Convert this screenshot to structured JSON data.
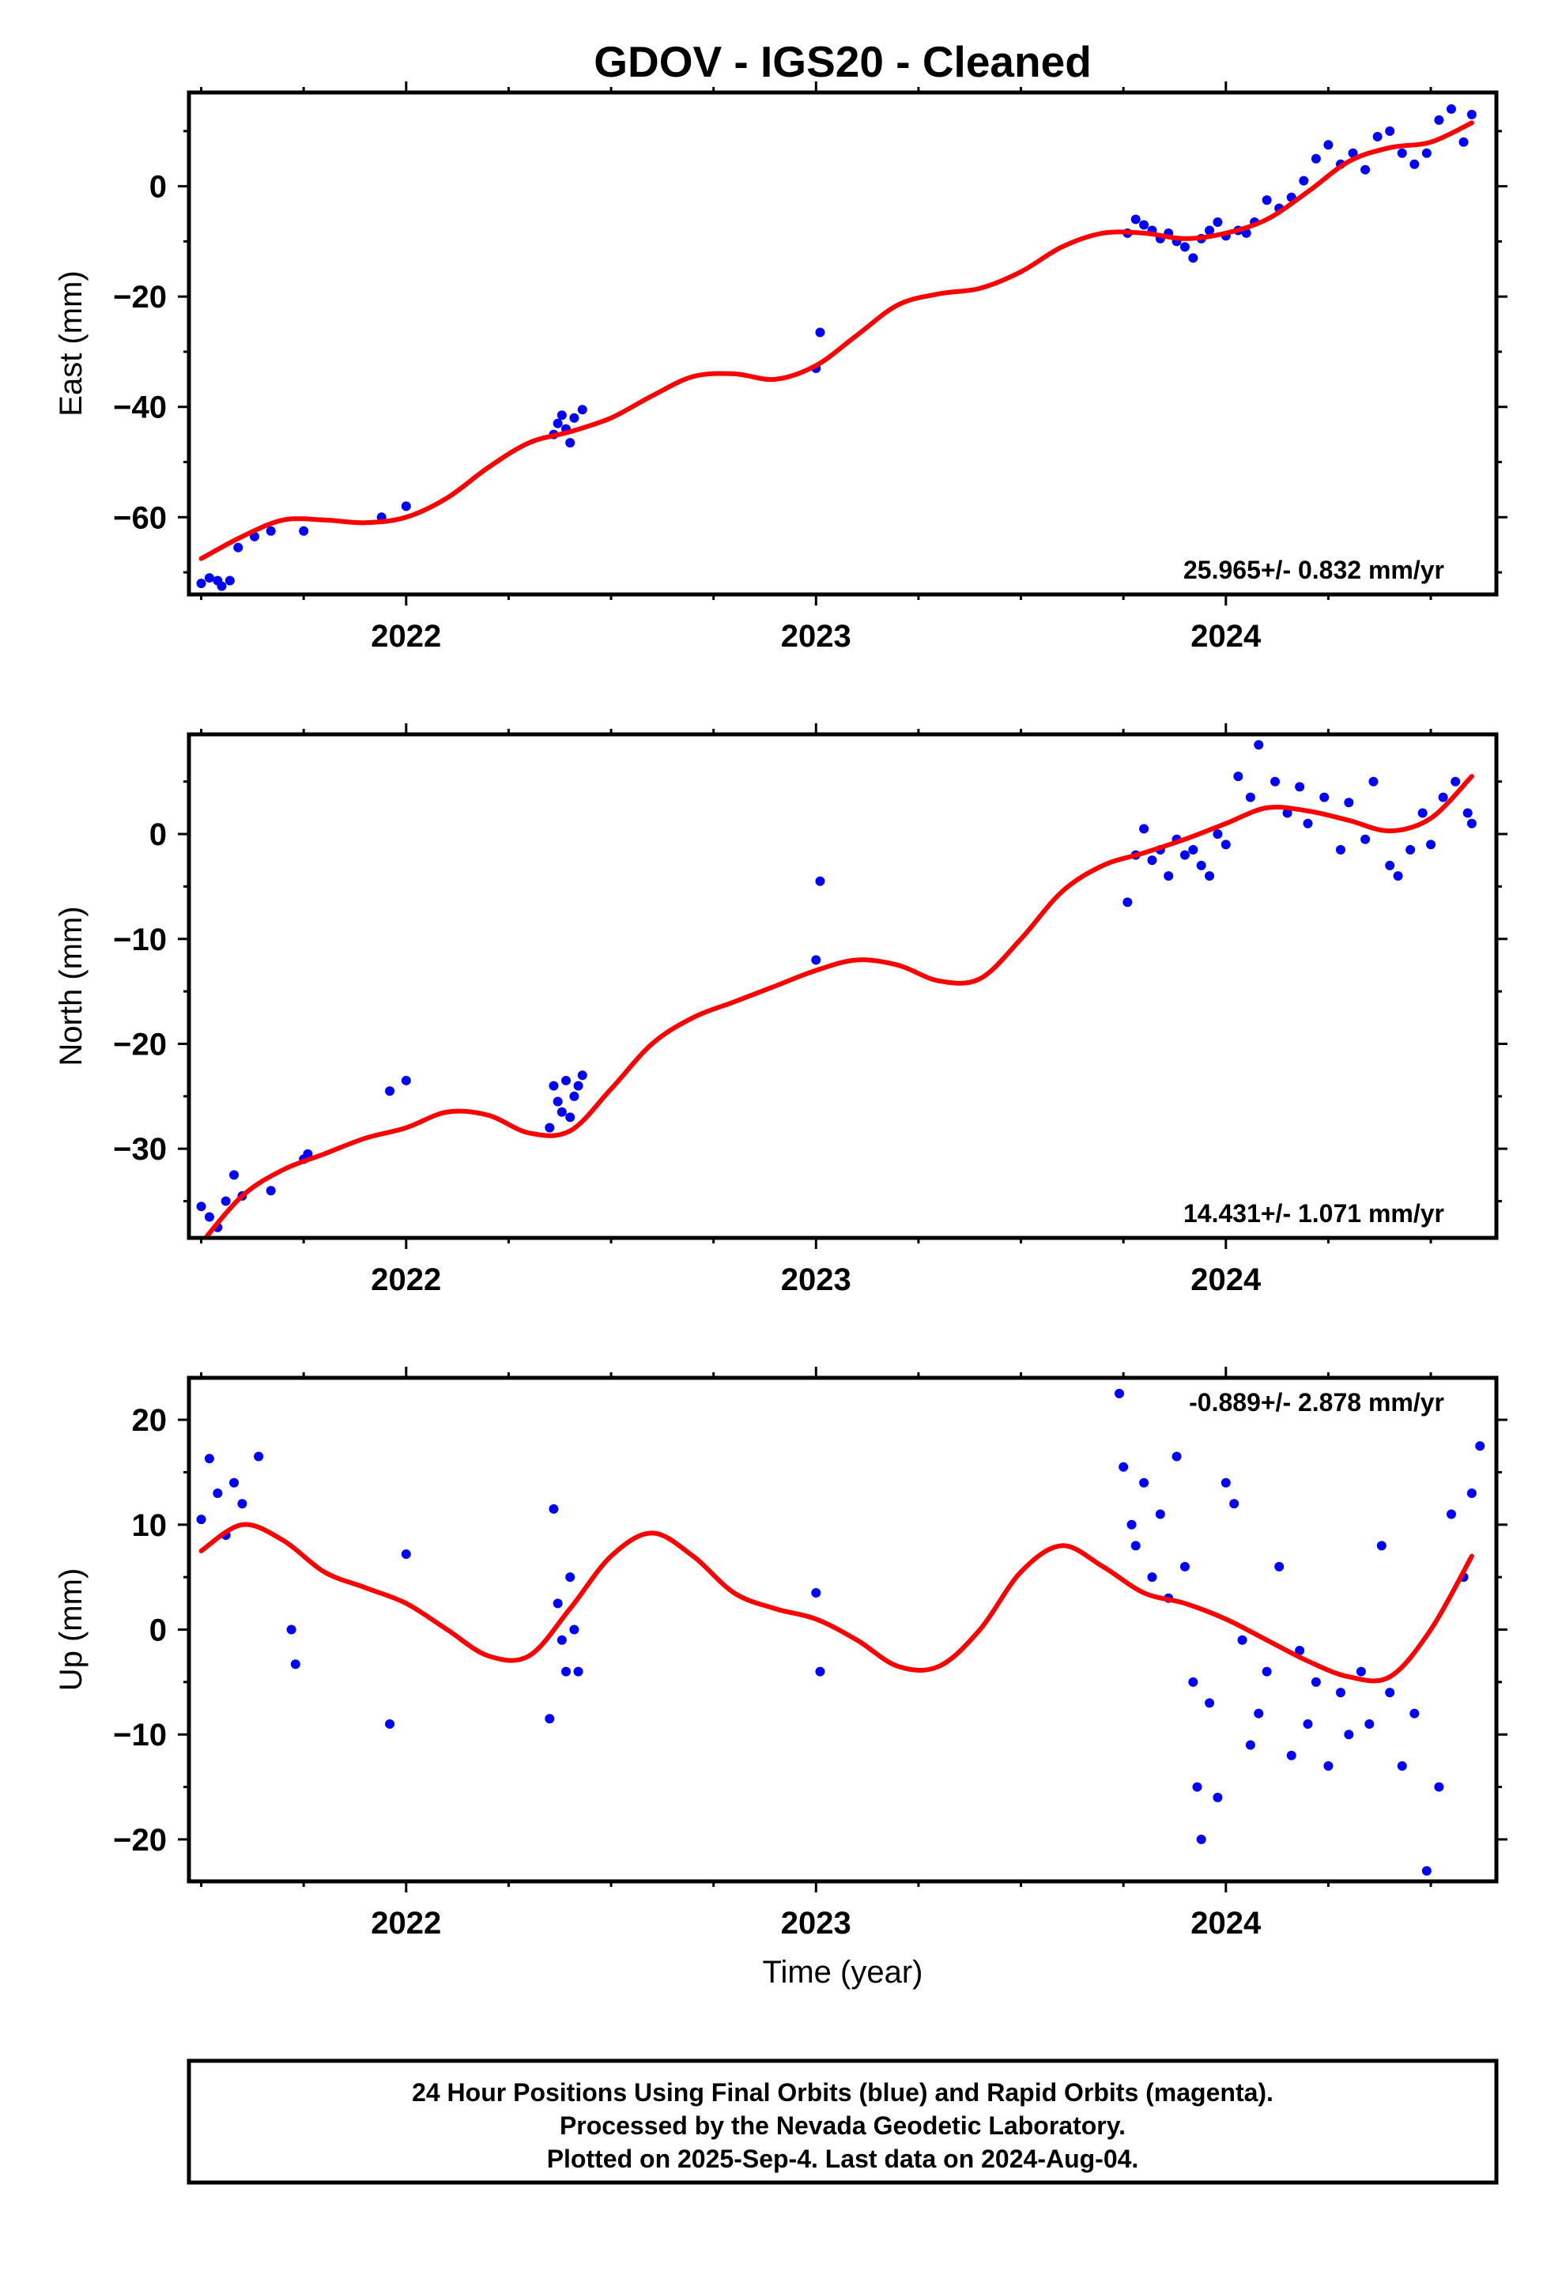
{
  "title": "GDOV  - IGS20 - Cleaned",
  "x_axis_label": "Time (year)",
  "caption": [
    "24 Hour Positions Using Final Orbits (blue) and Rapid Orbits (magenta).",
    "Processed by the Nevada Geodetic Laboratory.",
    "Plotted on 2025-Sep-4. Last data on 2024-Aug-04."
  ],
  "colors": {
    "points": "#0000ff",
    "fit": "#ff0000",
    "frame": "#000000"
  },
  "chart_data": [
    {
      "type": "scatter",
      "panel": "east",
      "ylabel": "East (mm)",
      "rate": "25.965+/- 0.832 mm/yr",
      "rate_position": "bottom-right",
      "xlim": [
        2021.47,
        2024.66
      ],
      "ylim": [
        -74,
        17
      ],
      "xticks": [
        2022,
        2023,
        2024
      ],
      "yticks": [
        -60,
        -40,
        -20,
        0
      ],
      "series": [
        {
          "kind": "points",
          "x": [
            2021.5,
            2021.52,
            2021.54,
            2021.55,
            2021.57,
            2021.59,
            2021.63,
            2021.67,
            2021.75,
            2021.94,
            2022.0,
            2022.36,
            2022.37,
            2022.38,
            2022.39,
            2022.4,
            2022.41,
            2022.43,
            2023.0,
            2023.01,
            2023.76,
            2023.78,
            2023.8,
            2023.82,
            2023.84,
            2023.86,
            2023.88,
            2023.9,
            2023.92,
            2023.94,
            2023.96,
            2023.98,
            2024.0,
            2024.03,
            2024.05,
            2024.07,
            2024.1,
            2024.13,
            2024.16,
            2024.19,
            2024.22,
            2024.25,
            2024.28,
            2024.31,
            2024.34,
            2024.37,
            2024.4,
            2024.43,
            2024.46,
            2024.49,
            2024.52,
            2024.55,
            2024.58,
            2024.6
          ],
          "y": [
            -72,
            -71,
            -71.5,
            -72.5,
            -71.5,
            -65.5,
            -63.5,
            -62.5,
            -62.5,
            -60,
            -58,
            -45,
            -43,
            -41.5,
            -44,
            -46.5,
            -42,
            -40.5,
            -33,
            -26.5,
            -8.5,
            -6,
            -7,
            -8,
            -9.5,
            -8.5,
            -10,
            -11,
            -13,
            -9.5,
            -8,
            -6.5,
            -9,
            -8,
            -8.5,
            -6.5,
            -2.5,
            -4,
            -2,
            1,
            5,
            7.5,
            4,
            6,
            3,
            9,
            10,
            6,
            4,
            6,
            12,
            14,
            8,
            13
          ]
        },
        {
          "kind": "fit",
          "x": [
            2021.5,
            2021.6,
            2021.7,
            2021.8,
            2021.9,
            2022.0,
            2022.1,
            2022.2,
            2022.3,
            2022.4,
            2022.5,
            2022.6,
            2022.7,
            2022.8,
            2022.9,
            2023.0,
            2023.1,
            2023.2,
            2023.3,
            2023.4,
            2023.5,
            2023.6,
            2023.7,
            2023.8,
            2023.9,
            2024.0,
            2024.1,
            2024.2,
            2024.3,
            2024.4,
            2024.5,
            2024.6
          ],
          "y": [
            -67.5,
            -63.5,
            -60.5,
            -60.5,
            -61,
            -60,
            -56.5,
            -51,
            -46.5,
            -44.5,
            -42,
            -38,
            -34.5,
            -34,
            -35,
            -32.5,
            -27,
            -21.5,
            -19.5,
            -18.5,
            -15.5,
            -11,
            -8.5,
            -8.5,
            -9.5,
            -8.5,
            -6,
            -1,
            4.5,
            7,
            8,
            11.5
          ]
        }
      ]
    },
    {
      "type": "scatter",
      "panel": "north",
      "ylabel": "North (mm)",
      "rate": "14.431+/- 1.071 mm/yr",
      "rate_position": "bottom-right",
      "xlim": [
        2021.47,
        2024.66
      ],
      "ylim": [
        -38.5,
        9.5
      ],
      "xticks": [
        2022,
        2023,
        2024
      ],
      "yticks": [
        -30,
        -20,
        -10,
        0
      ],
      "series": [
        {
          "kind": "points",
          "x": [
            2021.5,
            2021.52,
            2021.54,
            2021.56,
            2021.58,
            2021.6,
            2021.67,
            2021.75,
            2021.76,
            2021.96,
            2022.0,
            2022.35,
            2022.36,
            2022.37,
            2022.38,
            2022.39,
            2022.4,
            2022.41,
            2022.42,
            2022.43,
            2023.0,
            2023.01,
            2023.76,
            2023.78,
            2023.8,
            2023.82,
            2023.84,
            2023.86,
            2023.88,
            2023.9,
            2023.92,
            2023.94,
            2023.96,
            2023.98,
            2024.0,
            2024.03,
            2024.06,
            2024.08,
            2024.12,
            2024.15,
            2024.18,
            2024.2,
            2024.24,
            2024.28,
            2024.3,
            2024.34,
            2024.36,
            2024.4,
            2024.42,
            2024.45,
            2024.48,
            2024.5,
            2024.53,
            2024.56,
            2024.59,
            2024.6
          ],
          "y": [
            -35.5,
            -36.5,
            -37.5,
            -35,
            -32.5,
            -34.5,
            -34,
            -31,
            -30.5,
            -24.5,
            -23.5,
            -28,
            -24,
            -25.5,
            -26.5,
            -23.5,
            -27,
            -25,
            -24,
            -23,
            -12,
            -4.5,
            -6.5,
            -2,
            0.5,
            -2.5,
            -1.5,
            -4,
            -0.5,
            -2,
            -1.5,
            -3,
            -4,
            0,
            -1,
            5.5,
            3.5,
            8.5,
            5,
            2,
            4.5,
            1,
            3.5,
            -1.5,
            3,
            -0.5,
            5,
            -3,
            -4,
            -1.5,
            2,
            -1,
            3.5,
            5,
            2,
            1
          ]
        },
        {
          "kind": "fit",
          "x": [
            2021.5,
            2021.6,
            2021.7,
            2021.8,
            2021.9,
            2022.0,
            2022.1,
            2022.2,
            2022.3,
            2022.4,
            2022.5,
            2022.6,
            2022.7,
            2022.8,
            2022.9,
            2023.0,
            2023.1,
            2023.2,
            2023.3,
            2023.4,
            2023.5,
            2023.6,
            2023.7,
            2023.8,
            2023.9,
            2024.0,
            2024.1,
            2024.2,
            2024.3,
            2024.4,
            2024.5,
            2024.6
          ],
          "y": [
            -39,
            -34.5,
            -32,
            -30.5,
            -29,
            -28,
            -26.5,
            -26.8,
            -28.5,
            -28.3,
            -24.3,
            -20,
            -17.5,
            -16,
            -14.5,
            -13,
            -12,
            -12.5,
            -14,
            -13.8,
            -10,
            -5.5,
            -3,
            -1.8,
            -0.5,
            1,
            2.5,
            2.2,
            1.3,
            0.3,
            1.5,
            5.5
          ]
        }
      ]
    },
    {
      "type": "scatter",
      "panel": "up",
      "ylabel": "Up (mm)",
      "rate": "-0.889+/- 2.878 mm/yr",
      "rate_position": "top-right",
      "xlim": [
        2021.47,
        2024.66
      ],
      "ylim": [
        -24,
        24
      ],
      "xticks": [
        2022,
        2023,
        2024
      ],
      "yticks": [
        -20,
        -10,
        0,
        10,
        20
      ],
      "series": [
        {
          "kind": "points",
          "x": [
            2021.5,
            2021.52,
            2021.54,
            2021.56,
            2021.58,
            2021.6,
            2021.64,
            2021.72,
            2021.73,
            2021.96,
            2022.0,
            2022.35,
            2022.36,
            2022.37,
            2022.38,
            2022.39,
            2022.4,
            2022.41,
            2022.42,
            2023.0,
            2023.01,
            2023.74,
            2023.75,
            2023.77,
            2023.78,
            2023.8,
            2023.82,
            2023.84,
            2023.86,
            2023.88,
            2023.9,
            2023.92,
            2023.93,
            2023.94,
            2023.96,
            2023.98,
            2024.0,
            2024.02,
            2024.04,
            2024.06,
            2024.08,
            2024.1,
            2024.13,
            2024.16,
            2024.18,
            2024.2,
            2024.22,
            2024.25,
            2024.28,
            2024.3,
            2024.33,
            2024.35,
            2024.38,
            2024.4,
            2024.43,
            2024.46,
            2024.49,
            2024.52,
            2024.55,
            2024.58,
            2024.6,
            2024.62
          ],
          "y": [
            10.5,
            16.3,
            13,
            9,
            14,
            12,
            16.5,
            0,
            -3.3,
            -9,
            7.2,
            -8.5,
            11.5,
            2.5,
            -1,
            -4,
            5,
            0,
            -4,
            3.5,
            -4,
            22.5,
            15.5,
            10,
            8,
            14,
            5,
            11,
            3,
            16.5,
            6,
            -5,
            -15,
            -20,
            -7,
            -16,
            14,
            12,
            -1,
            -11,
            -8,
            -4,
            6,
            -12,
            -2,
            -9,
            -5,
            -13,
            -6,
            -10,
            -4,
            -9,
            8,
            -6,
            -13,
            -8,
            -23,
            -15,
            11,
            5,
            13,
            17.5
          ]
        },
        {
          "kind": "fit",
          "x": [
            2021.5,
            2021.6,
            2021.7,
            2021.8,
            2021.9,
            2022.0,
            2022.1,
            2022.2,
            2022.3,
            2022.4,
            2022.5,
            2022.6,
            2022.7,
            2022.8,
            2022.9,
            2023.0,
            2023.1,
            2023.2,
            2023.3,
            2023.4,
            2023.5,
            2023.6,
            2023.7,
            2023.8,
            2023.9,
            2024.0,
            2024.1,
            2024.2,
            2024.3,
            2024.4,
            2024.5,
            2024.6
          ],
          "y": [
            7.5,
            10,
            8.5,
            5.5,
            4,
            2.5,
            0,
            -2.5,
            -2.5,
            2,
            7,
            9.2,
            7,
            3.5,
            2,
            1,
            -1,
            -3.5,
            -3.5,
            0,
            5.5,
            8,
            6,
            3.5,
            2.5,
            1,
            -1,
            -3,
            -4.5,
            -4.5,
            0,
            7
          ]
        }
      ]
    }
  ]
}
